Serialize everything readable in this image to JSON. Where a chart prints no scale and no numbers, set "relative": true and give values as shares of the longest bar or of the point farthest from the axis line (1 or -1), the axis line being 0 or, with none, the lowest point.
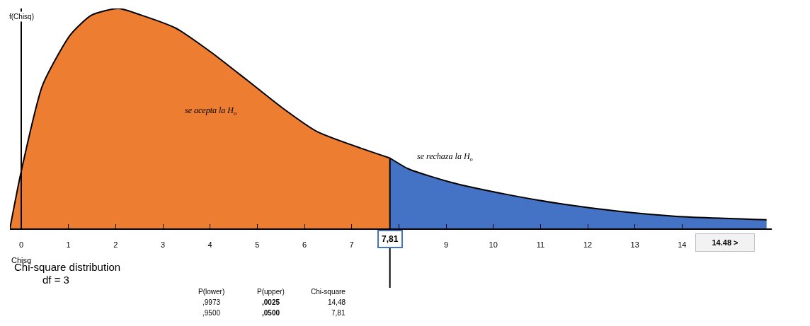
{
  "chart_data": {
    "type": "area",
    "title": "Chi-square distribution",
    "subtitle": "df = 3",
    "xlabel": "Chisq",
    "ylabel": "f(Chisq)",
    "relative": true,
    "series": [
      {
        "color": "#ed7d31",
        "x": [
          -0.24,
          0,
          0.45,
          1.04,
          1.49,
          2.06,
          2.54,
          3.28,
          4.03,
          4.78,
          5.52,
          6.27,
          7.81
        ],
        "values": [
          0,
          0.26,
          0.65,
          0.88,
          0.97,
          1.0,
          0.97,
          0.91,
          0.8,
          0.675,
          0.55,
          0.44,
          0.32
        ]
      },
      {
        "color": "#4472c4",
        "x": [
          7.81,
          8.21,
          9.1,
          10.3,
          11.49,
          12.69,
          13.88,
          15.79
        ],
        "values": [
          0.32,
          0.27,
          0.21,
          0.154,
          0.11,
          0.077,
          0.055,
          0.039
        ]
      }
    ],
    "xlim": [
      -0.24,
      15.9
    ],
    "xticks": [
      0,
      1,
      2,
      3,
      4,
      5,
      6,
      7,
      {
        "value": 8,
        "label": null
      },
      9,
      10,
      11,
      12,
      13,
      14
    ],
    "ref_lines": [
      {
        "axis": "x",
        "value": 0,
        "color": "#000000"
      },
      {
        "axis": "x",
        "value": 7.81,
        "label": "7,81",
        "color": "#000000"
      }
    ],
    "annotations": [
      "se acepta la H$_{o}$",
      "se rechaza la H$_{o}$",
      "14.48 >",
      "P(lower)",
      "P(upper)",
      "Chi-square",
      ",9973",
      ",0025",
      "14,48",
      ",9500",
      ",0500",
      "7,81"
    ]
  }
}
